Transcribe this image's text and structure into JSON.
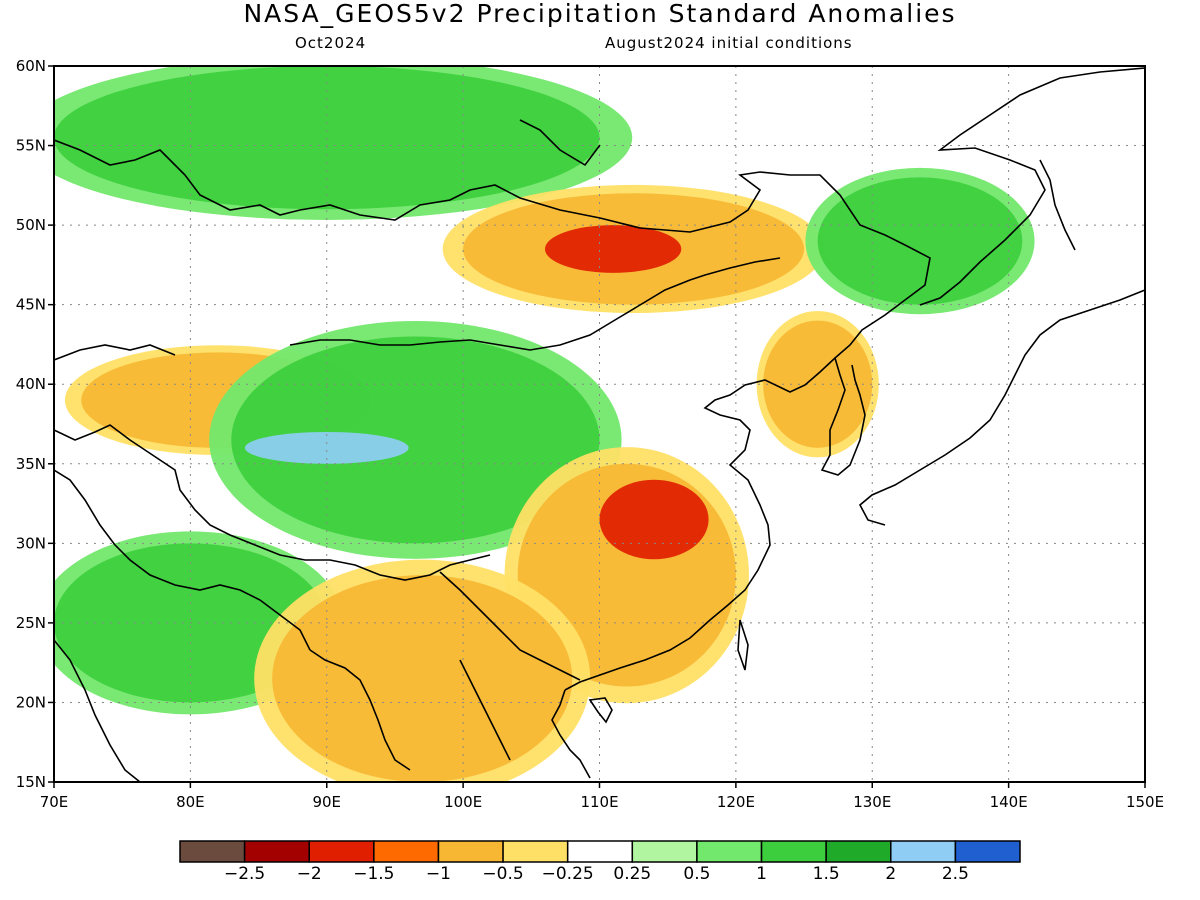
{
  "header": {
    "title": "NASA_GEOS5v2 Precipitation Standard Anomalies",
    "forecast_month": "Oct2024",
    "initial_conditions": "August2024 initial conditions"
  },
  "map": {
    "lon_range": [
      70,
      150
    ],
    "lat_range": [
      15,
      60
    ],
    "lon_ticks": [
      "70E",
      "80E",
      "90E",
      "100E",
      "110E",
      "120E",
      "130E",
      "140E",
      "150E"
    ],
    "lat_ticks": [
      "15N",
      "20N",
      "25N",
      "30N",
      "35N",
      "40N",
      "45N",
      "50N",
      "55N",
      "60N"
    ],
    "gridlines": "dotted",
    "coastlines_and_borders": "black"
  },
  "colorbar": {
    "colors": [
      "#6b4b3e",
      "#a30000",
      "#e01e00",
      "#ff6a00",
      "#f7b733",
      "#ffe066",
      "#ffffff",
      "#b2f5a0",
      "#72e86c",
      "#3dce3d",
      "#1faa2a",
      "#8fcdf5",
      "#1f5fd0"
    ],
    "labels": [
      "−2.5",
      "−2",
      "−1.5",
      "−1",
      "−0.5",
      "−0.25",
      "0.25",
      "0.5",
      "1",
      "1.5",
      "2",
      "2.5"
    ]
  },
  "anomaly_regions": [
    {
      "level": "wetter",
      "lon": [
        70,
        110
      ],
      "lat": [
        51,
        60
      ]
    },
    {
      "level": "drier",
      "lon": [
        100,
        125
      ],
      "lat": [
        45,
        52
      ]
    },
    {
      "level": "much-drier",
      "lon": [
        106,
        116
      ],
      "lat": [
        47,
        50
      ]
    },
    {
      "level": "drier",
      "lon": [
        72,
        92
      ],
      "lat": [
        36,
        42
      ]
    },
    {
      "level": "wetter",
      "lon": [
        83,
        110
      ],
      "lat": [
        30,
        43
      ]
    },
    {
      "level": "much-wetter",
      "lon": [
        84,
        96
      ],
      "lat": [
        35,
        37
      ]
    },
    {
      "level": "drier",
      "lon": [
        104,
        120
      ],
      "lat": [
        21,
        35
      ]
    },
    {
      "level": "much-drier",
      "lon": [
        110,
        118
      ],
      "lat": [
        29,
        34
      ]
    },
    {
      "level": "wetter",
      "lon": [
        70,
        90
      ],
      "lat": [
        20,
        30
      ]
    },
    {
      "level": "drier",
      "lon": [
        86,
        108
      ],
      "lat": [
        15,
        28
      ]
    },
    {
      "level": "drier",
      "lon": [
        122,
        130
      ],
      "lat": [
        36,
        44
      ]
    },
    {
      "level": "wetter",
      "lon": [
        126,
        141
      ],
      "lat": [
        45,
        53
      ]
    }
  ]
}
